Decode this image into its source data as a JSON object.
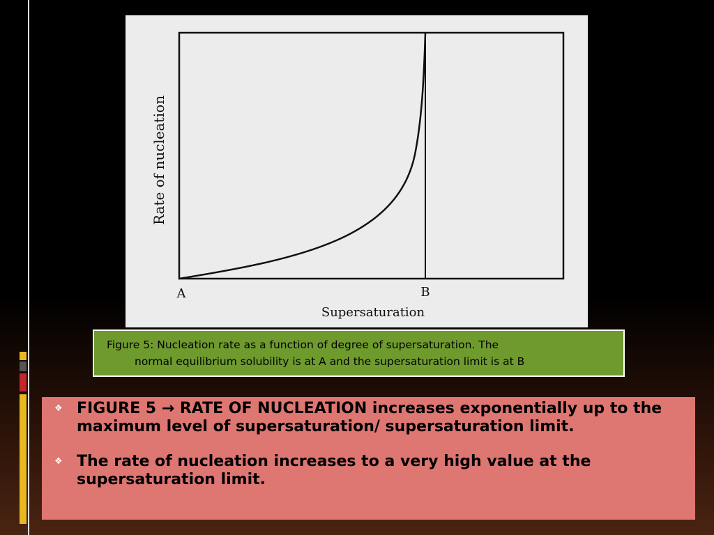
{
  "figure": {
    "y_label": "Rate of nucleation",
    "x_label": "Supersaturation",
    "point_a": "A",
    "point_b": "B"
  },
  "caption": {
    "line1": "Figure 5: Nucleation rate as a function of degree of supersaturation. The",
    "line2": "normal equilibrium solubility is at A and the supersaturation limit is at B"
  },
  "bullets": [
    "FIGURE 5 → RATE OF NUCLEATION increases exponentially up to the maximum level of supersaturation/ supersaturation limit.",
    "The rate of nucleation increases to a very high value at the supersaturation limit."
  ]
}
